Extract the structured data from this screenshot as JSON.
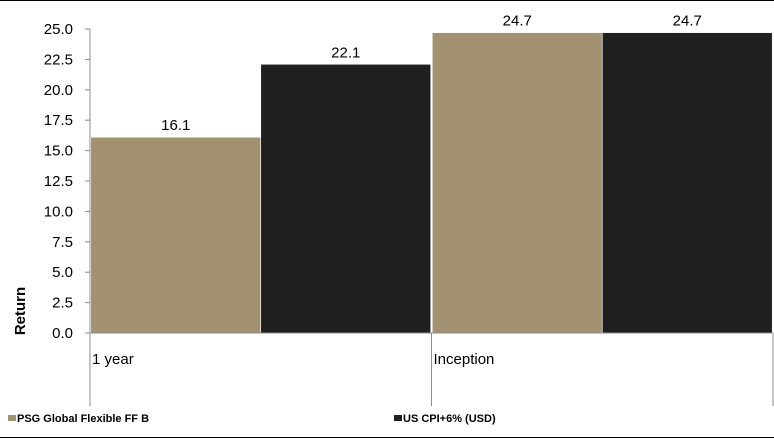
{
  "chart_data": {
    "type": "bar",
    "categories": [
      "1 year",
      "Inception"
    ],
    "series": [
      {
        "name": "PSG Global Flexible FF B",
        "values": [
          16.1,
          24.7
        ],
        "color": "#A39272"
      },
      {
        "name": "US CPI+6% (USD)",
        "values": [
          22.1,
          24.7
        ],
        "color": "#1F1F1F"
      }
    ],
    "data_labels": [
      [
        "16.1",
        "24.7"
      ],
      [
        "22.1",
        "24.7"
      ]
    ],
    "y_ticks": [
      "0.0",
      "2.5",
      "5.0",
      "7.5",
      "10.0",
      "12.5",
      "15.0",
      "17.5",
      "20.0",
      "22.5",
      "25.0"
    ],
    "ylim": [
      0,
      25
    ],
    "ylabel": "Return",
    "xlabel": "",
    "grid": false,
    "legend_position": "bottom"
  }
}
